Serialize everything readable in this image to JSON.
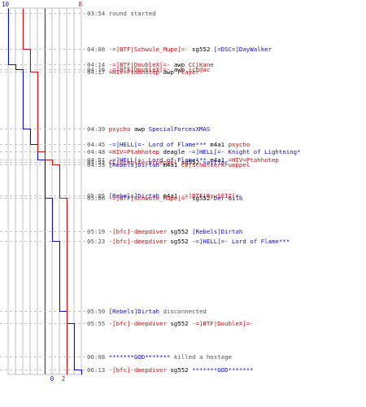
{
  "colors": {
    "team_blue": "#1010c8",
    "team_red": "#cc1010",
    "neutral": "#000000",
    "grid": "#bfbfbf",
    "time": "#555555"
  },
  "chart_data": {
    "type": "line",
    "title": "",
    "xlabel": "",
    "ylabel": "",
    "axis_top": {
      "left": "10",
      "right": "8"
    },
    "axis_bottom": {
      "left": "0",
      "right": "2"
    },
    "xlim": [
      0,
      10
    ],
    "y_time_range": [
      "03:54",
      "06:13"
    ],
    "grid": true,
    "series": [
      {
        "color": "#1010c8",
        "points": [
          {
            "time": "03:54",
            "value": 10
          },
          {
            "time": "04:14",
            "value": 9
          },
          {
            "time": "04:16",
            "value": 8
          },
          {
            "time": "04:39",
            "value": 7
          },
          {
            "time": "04:45",
            "value": 6
          },
          {
            "time": "04:51",
            "value": 5
          },
          {
            "time": "05:06",
            "value": 4
          },
          {
            "time": "05:23",
            "value": 3
          },
          {
            "time": "05:50",
            "value": 2
          },
          {
            "time": "05:55",
            "value": 1
          },
          {
            "time": "06:13",
            "value": 0
          }
        ]
      },
      {
        "color": "#cc1010",
        "points": [
          {
            "time": "03:54",
            "value": 8
          },
          {
            "time": "04:08",
            "value": 7
          },
          {
            "time": "04:17",
            "value": 6
          },
          {
            "time": "04:48",
            "value": 5
          },
          {
            "time": "04:51",
            "value": 4
          },
          {
            "time": "04:53",
            "value": 3
          },
          {
            "time": "05:06",
            "value": 2
          },
          {
            "time": "06:08",
            "value": 2
          }
        ]
      }
    ]
  },
  "log": [
    {
      "time": "03:54",
      "actor": "",
      "actor_color": "",
      "weapon": "",
      "victim": "",
      "victim_color": "",
      "message": "round started",
      "message_color": "#555555"
    },
    {
      "time": "04:08",
      "actor": "-=]BTF|Schwule_Mupe[=-",
      "actor_color": "#cc1010",
      "weapon": "sg552",
      "victim": "[=DSC=]DayWalker",
      "victim_color": "#1010c8",
      "message": "",
      "message_color": ""
    },
    {
      "time": "04:14",
      "actor": "-=]BTF|DoubleX[=-",
      "actor_color": "#cc1010",
      "weapon": "awp",
      "victim": "CC|Kane",
      "victim_color": "#cc1010",
      "message": "",
      "message_color": ""
    },
    {
      "time": "04:16",
      "actor": "-=]BTF|DoubleX[=-",
      "actor_color": "#cc1010",
      "weapon": "awp",
      "victim": "ich@ac",
      "victim_color": "#cc1010",
      "message": "",
      "message_color": ""
    },
    {
      "time": "04:17",
      "actor": "=HIV=Ptahhotep",
      "actor_color": "#cc1010",
      "weapon": "awp",
      "victim": "Player",
      "victim_color": "#cc1010",
      "message": "",
      "message_color": ""
    },
    {
      "time": "04:39",
      "actor": "psycho",
      "actor_color": "#cc1010",
      "weapon": "awp",
      "victim": "SpecialForcesXMAS",
      "victim_color": "#1010c8",
      "message": "",
      "message_color": ""
    },
    {
      "time": "04:45",
      "actor": "-=]HELL[=- Lord of Flame***",
      "actor_color": "#1010c8",
      "weapon": "m4a1",
      "victim": "psycho",
      "victim_color": "#cc1010",
      "message": "",
      "message_color": ""
    },
    {
      "time": "04:48",
      "actor": "=HIV=Ptahhotep",
      "actor_color": "#cc1010",
      "weapon": "deagle",
      "victim": "-=]HELL[=- Knight of Lightning*",
      "victim_color": "#1010c8",
      "message": "",
      "message_color": ""
    },
    {
      "time": "04:51",
      "actor": "-=]HELL[=- Lord of Flame***",
      "actor_color": "#1010c8",
      "weapon": "m4a1",
      "victim": "=HIV=Ptahhotep",
      "victim_color": "#cc1010",
      "message": "",
      "message_color": ""
    },
    {
      "time": "04:52",
      "actor": "CC|Schulterkrueppel",
      "actor_color": "#cc1010",
      "weapon": "sg552",
      "victim": "sajttar",
      "victim_color": "#1010c8",
      "message": "",
      "message_color": ""
    },
    {
      "time": "04:53",
      "actor": "[Rebels]Dirtah",
      "actor_color": "#1010c8",
      "weapon": "m4a1",
      "victim": "CC|Schulterkrueppel",
      "victim_color": "#cc1010",
      "message": "",
      "message_color": ""
    },
    {
      "time": "05:05",
      "actor": "[Rebels]Dirtah",
      "actor_color": "#1010c8",
      "weapon": "m4a1",
      "victim": "-=]BTF|RyuSFII[=-",
      "victim_color": "#cc1010",
      "message": "",
      "message_color": ""
    },
    {
      "time": "05:06",
      "actor": "-=]BTF|Schwule_Mupe[=-",
      "actor_color": "#cc1010",
      "weapon": "sg552",
      "victim": "Der Gilb",
      "victim_color": "#1010c8",
      "message": "",
      "message_color": ""
    },
    {
      "time": "05:19",
      "actor": "-[bfc]-deepdiver",
      "actor_color": "#cc1010",
      "weapon": "sg552",
      "victim": "[Rebels]Dirtah",
      "victim_color": "#1010c8",
      "message": "",
      "message_color": ""
    },
    {
      "time": "05:23",
      "actor": "-[bfc]-deepdiver",
      "actor_color": "#cc1010",
      "weapon": "sg552",
      "victim": "-=]HELL[=- Lord of Flame***",
      "victim_color": "#1010c8",
      "message": "",
      "message_color": ""
    },
    {
      "time": "05:50",
      "actor": "[Rebels]Dirtah",
      "actor_color": "#1010c8",
      "weapon": "",
      "victim": "",
      "victim_color": "",
      "message": "disconnected",
      "message_color": "#555555"
    },
    {
      "time": "05:55",
      "actor": "-[bfc]-deepdiver",
      "actor_color": "#cc1010",
      "weapon": "sg552",
      "victim": "-=]BTF|DoubleX[=-",
      "victim_color": "#cc1010",
      "message": "",
      "message_color": ""
    },
    {
      "time": "06:08",
      "actor": "*******GOD*******",
      "actor_color": "#1010c8",
      "weapon": "",
      "victim": "",
      "victim_color": "",
      "message": "killed a hostage",
      "message_color": "#555555"
    },
    {
      "time": "06:13",
      "actor": "-[bfc]-deepdiver",
      "actor_color": "#cc1010",
      "weapon": "sg552",
      "victim": "*******GOD*******",
      "victim_color": "#1010c8",
      "message": "",
      "message_color": ""
    }
  ]
}
